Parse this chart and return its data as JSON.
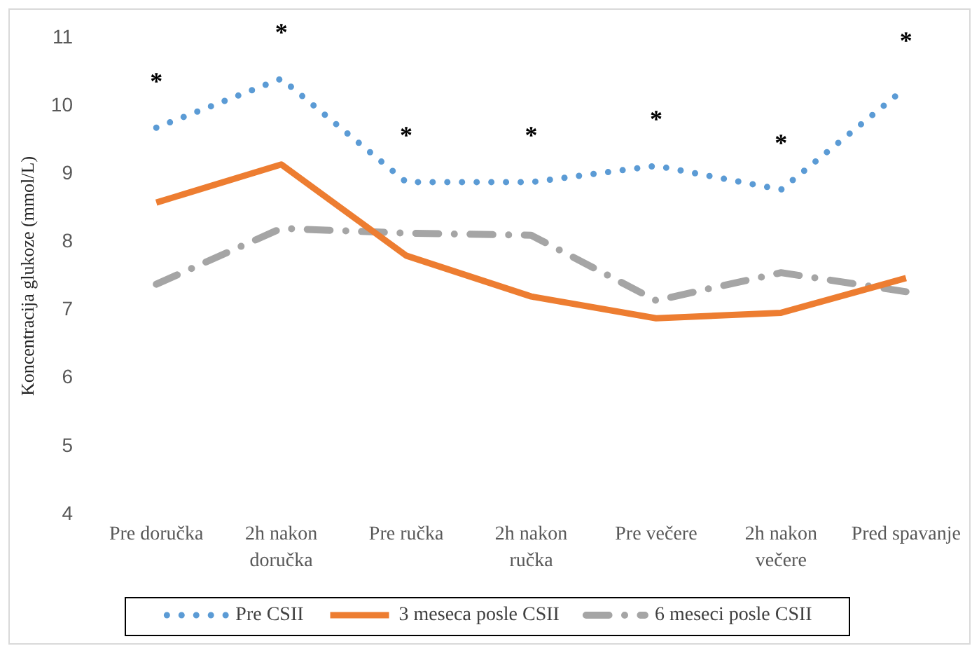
{
  "chart_data": {
    "type": "line",
    "ylabel": "Koncentracija glukoze (mmol/L)",
    "categories": [
      "Pre doručka",
      "2h nakon doručka",
      "Pre ručka",
      "2h nakon ručka",
      "Pre večere",
      "2h nakon večere",
      "Pred spavanje"
    ],
    "series": [
      {
        "name": "Pre CSII",
        "color": "#5b9bd5",
        "line_style": "dotted",
        "values": [
          9.68,
          10.4,
          8.88,
          8.88,
          9.12,
          8.77,
          10.27
        ]
      },
      {
        "name": "3 meseca posle CSII",
        "color": "#ed7d31",
        "line_style": "solid",
        "values": [
          8.58,
          9.14,
          7.8,
          7.2,
          6.88,
          6.96,
          7.47
        ]
      },
      {
        "name": "6 meseci posle CSII",
        "color": "#a5a5a5",
        "line_style": "dashed",
        "values": [
          7.38,
          8.2,
          8.13,
          8.1,
          7.14,
          7.55,
          7.27
        ]
      }
    ],
    "ylim": [
      4,
      11
    ],
    "yticks": [
      4,
      5,
      6,
      7,
      8,
      9,
      10,
      11
    ],
    "grid": false,
    "legend": "bottom",
    "marker": "none",
    "annotations": [
      "*",
      "*",
      "*",
      "*",
      "*",
      "*",
      "*"
    ]
  }
}
